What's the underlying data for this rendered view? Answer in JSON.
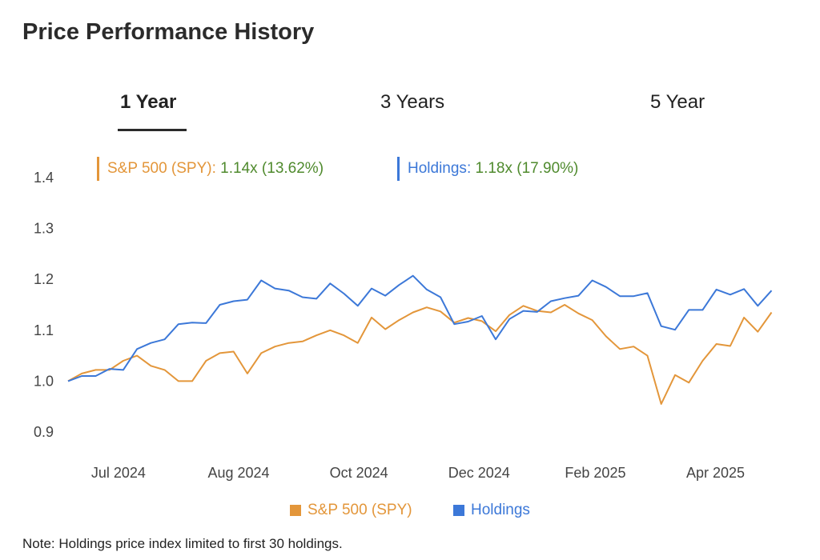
{
  "title": "Price Performance History",
  "tabs": [
    {
      "label": "1 Year",
      "active": true
    },
    {
      "label": "3 Years",
      "active": false
    },
    {
      "label": "5 Year",
      "active": false
    }
  ],
  "stats": [
    {
      "name": "S&P 500 (SPY)",
      "separator": ":",
      "value": "1.14x (13.62%)",
      "color": "#e3963a"
    },
    {
      "name": "Holdings",
      "separator": ":",
      "value": "1.18x (17.90%)",
      "color": "#3c78d8"
    }
  ],
  "legend": [
    {
      "label": "S&P 500 (SPY)",
      "color": "#e3963a"
    },
    {
      "label": "Holdings",
      "color": "#3c78d8"
    }
  ],
  "note": "Note: Holdings price index limited to first 30 holdings.",
  "chart_data": {
    "type": "line",
    "xlim": [
      "2024-06-03",
      "2025-05-27"
    ],
    "ylim": [
      0.9,
      1.4
    ],
    "yticks": [
      {
        "value": 1.4,
        "label": "1.4"
      },
      {
        "value": 1.3,
        "label": "1.3"
      },
      {
        "value": 1.2,
        "label": "1.2"
      },
      {
        "value": 1.1,
        "label": "1.1"
      },
      {
        "value": 1.0,
        "label": "1.0"
      },
      {
        "value": 0.9,
        "label": "0.9"
      }
    ],
    "xticks": [
      {
        "date": "2024-07-01",
        "label": "Jul 2024"
      },
      {
        "date": "2024-08-31",
        "label": "Aug 2024"
      },
      {
        "date": "2024-10-31",
        "label": "Oct 2024"
      },
      {
        "date": "2024-12-31",
        "label": "Dec 2024"
      },
      {
        "date": "2025-02-28",
        "label": "Feb 2025"
      },
      {
        "date": "2025-04-30",
        "label": "Apr 2025"
      }
    ],
    "grid": false,
    "x": [
      "2024-06-03",
      "2024-06-10",
      "2024-06-17",
      "2024-06-24",
      "2024-07-01",
      "2024-07-08",
      "2024-07-15",
      "2024-07-22",
      "2024-07-29",
      "2024-08-05",
      "2024-08-12",
      "2024-08-19",
      "2024-08-26",
      "2024-09-02",
      "2024-09-09",
      "2024-09-16",
      "2024-09-23",
      "2024-09-30",
      "2024-10-07",
      "2024-10-14",
      "2024-10-21",
      "2024-10-28",
      "2024-11-04",
      "2024-11-11",
      "2024-11-18",
      "2024-11-25",
      "2024-12-02",
      "2024-12-09",
      "2024-12-16",
      "2024-12-23",
      "2024-12-30",
      "2025-01-06",
      "2025-01-13",
      "2025-01-20",
      "2025-01-27",
      "2025-02-03",
      "2025-02-10",
      "2025-02-17",
      "2025-02-24",
      "2025-03-03",
      "2025-03-10",
      "2025-03-17",
      "2025-03-24",
      "2025-03-31",
      "2025-04-07",
      "2025-04-14",
      "2025-04-21",
      "2025-04-28",
      "2025-05-05",
      "2025-05-12",
      "2025-05-19",
      "2025-05-26"
    ],
    "series": [
      {
        "name": "S&P 500 (SPY)",
        "color": "#e3963a",
        "values": [
          1.0,
          1.015,
          1.022,
          1.022,
          1.04,
          1.05,
          1.03,
          1.022,
          1.0,
          1.0,
          1.04,
          1.055,
          1.058,
          1.015,
          1.055,
          1.068,
          1.075,
          1.078,
          1.09,
          1.1,
          1.09,
          1.075,
          1.125,
          1.102,
          1.12,
          1.135,
          1.145,
          1.137,
          1.115,
          1.124,
          1.118,
          1.098,
          1.13,
          1.148,
          1.138,
          1.135,
          1.15,
          1.133,
          1.12,
          1.088,
          1.063,
          1.068,
          1.05,
          0.955,
          1.012,
          0.997,
          1.04,
          1.073,
          1.069,
          1.125,
          1.097,
          1.135
        ]
      },
      {
        "name": "Holdings",
        "color": "#3c78d8",
        "values": [
          1.0,
          1.01,
          1.01,
          1.024,
          1.022,
          1.063,
          1.075,
          1.082,
          1.112,
          1.115,
          1.114,
          1.15,
          1.157,
          1.16,
          1.198,
          1.182,
          1.178,
          1.165,
          1.162,
          1.192,
          1.172,
          1.148,
          1.182,
          1.168,
          1.189,
          1.207,
          1.18,
          1.165,
          1.112,
          1.117,
          1.128,
          1.082,
          1.122,
          1.138,
          1.136,
          1.157,
          1.163,
          1.168,
          1.198,
          1.185,
          1.167,
          1.167,
          1.173,
          1.108,
          1.101,
          1.14,
          1.14,
          1.18,
          1.17,
          1.181,
          1.148,
          1.178
        ]
      }
    ]
  }
}
